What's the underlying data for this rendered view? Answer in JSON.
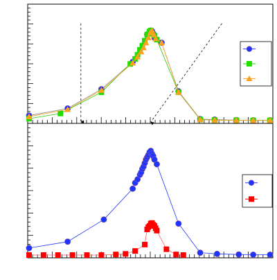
{
  "chart_data": [
    {
      "type": "scatter",
      "panel": "top",
      "x_range": [
        0,
        100
      ],
      "y_range": [
        0,
        100
      ],
      "grid": false,
      "legend_placement": "right",
      "series": [
        {
          "color": "#1e35ff",
          "marker": "circle",
          "line_color": "#8a8a8a",
          "x": [
            0,
            16,
            30,
            43,
            49,
            50,
            50.5,
            51,
            51.5,
            52,
            55,
            62,
            71,
            77,
            86,
            93,
            100
          ],
          "y": [
            5,
            12,
            31,
            58,
            85,
            88,
            89,
            88.5,
            86,
            82,
            77,
            29,
            1.5,
            1.0,
            0.5,
            0.3,
            0.3
          ]
        },
        {
          "color": "#22dd00",
          "marker": "square",
          "line_color": "#22cc00",
          "x": [
            0,
            13,
            30,
            42,
            44,
            45,
            46,
            47,
            48,
            49,
            50,
            50.5,
            51,
            52,
            53,
            62,
            71,
            77,
            86,
            93,
            100
          ],
          "y": [
            2,
            7,
            28,
            56,
            61,
            65,
            70,
            74,
            79,
            85,
            88,
            89,
            86,
            84,
            80,
            28,
            1,
            0.5,
            0.3,
            0.2,
            0.2
          ]
        },
        {
          "color": "#ffa020",
          "marker": "triangle",
          "line_color": "#ffa020",
          "x": [
            0,
            16,
            30,
            43,
            45,
            46.5,
            47.5,
            48.5,
            49.5,
            50.3,
            51,
            51.8,
            52.5,
            55,
            62,
            71,
            77,
            86,
            93,
            100
          ],
          "y": [
            4,
            11,
            30,
            57,
            63,
            68,
            72,
            77,
            82,
            87,
            89,
            85,
            81,
            77,
            28,
            1,
            0.5,
            0.3,
            0.2,
            0.2
          ]
        }
      ],
      "annotations": [
        {
          "type": "dashed-line-with-arrow",
          "x": [
            21.5,
            21.5
          ],
          "y": [
            96,
            0
          ],
          "arrow_at": [
            21.5,
            0
          ]
        },
        {
          "type": "dashed-line-with-arrow",
          "x": [
            80,
            50.5
          ],
          "y": [
            96,
            0
          ],
          "arrow_at": [
            50.5,
            0
          ]
        }
      ]
    },
    {
      "type": "scatter",
      "panel": "bottom",
      "x_range": [
        0,
        100
      ],
      "y_range": [
        0,
        100
      ],
      "grid": false,
      "legend_placement": "right",
      "series": [
        {
          "color": "#1e35ff",
          "marker": "circle",
          "line_color": "#1e35ff",
          "x": [
            0,
            16,
            31,
            43,
            44,
            45,
            46,
            46.5,
            47,
            47.5,
            48,
            48.5,
            49,
            49.5,
            50,
            50.5,
            51,
            51.5,
            52,
            53,
            62,
            71,
            78,
            87,
            93,
            100
          ],
          "y": [
            6,
            11.5,
            30.5,
            57,
            62,
            65,
            69,
            71,
            74,
            76,
            79,
            82,
            84,
            86,
            88.5,
            89.5,
            87,
            85,
            82,
            78,
            27,
            2,
            1,
            0.5,
            0.3,
            0.3
          ]
        },
        {
          "color": "#ff0000",
          "marker": "square",
          "line_color": "#ff6060",
          "x": [
            0,
            6,
            12,
            18,
            24,
            30,
            36,
            40,
            44,
            48,
            49,
            49.5,
            50,
            50.5,
            51,
            51.5,
            52,
            52.5,
            53,
            57,
            61,
            64
          ],
          "y": [
            0,
            0,
            0,
            0,
            0,
            0,
            0.5,
            1,
            3.5,
            9,
            22,
            24,
            25,
            27,
            27.5,
            26,
            25,
            23,
            21,
            5,
            0.5,
            0
          ]
        }
      ]
    }
  ]
}
